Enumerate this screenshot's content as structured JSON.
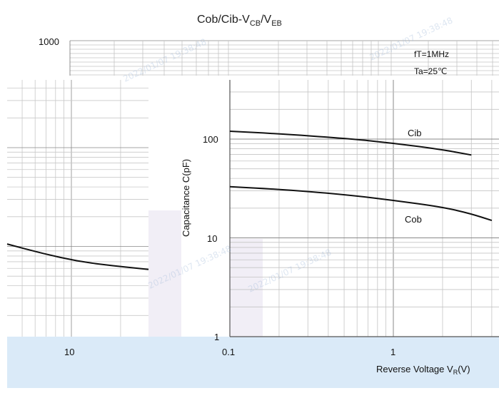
{
  "chart_data": {
    "type": "line",
    "title": "Cob/Cib-V",
    "title_sub1": "CB",
    "title_mid": "/V",
    "title_sub2": "EB",
    "ylabel": "Capacitance  C(pF)",
    "xlabel_main": "Reverse Voltage   V",
    "xlabel_sub": "R",
    "xlabel_unit": "(V)",
    "x_scale": "log",
    "y_scale": "log",
    "xlim": [
      0.1,
      3
    ],
    "ylim": [
      1,
      1000
    ],
    "x_ticks": [
      "0.1",
      "1"
    ],
    "y_ticks": [
      "1",
      "10",
      "100",
      "1000"
    ],
    "extra_tick_label": "10",
    "conditions": [
      "fT=1MHz",
      "Ta=25℃"
    ],
    "grid": true,
    "series": [
      {
        "name": "Cib",
        "x": [
          0.1,
          0.2,
          0.5,
          1,
          2,
          3
        ],
        "y": [
          120,
          113,
          102,
          91,
          78,
          69
        ]
      },
      {
        "name": "Cob",
        "x": [
          0.1,
          0.2,
          0.5,
          1,
          2,
          3,
          4
        ],
        "y": [
          33,
          31,
          27.5,
          24,
          20.5,
          17.5,
          15
        ]
      }
    ],
    "left_fragment_curve_y": [
      15,
      12,
      10,
      9,
      8.3
    ],
    "watermark": "2022/01/07 19:38:48"
  }
}
